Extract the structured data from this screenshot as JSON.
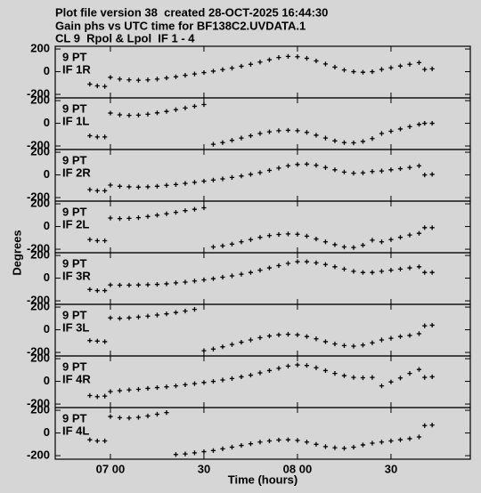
{
  "chart_data": {
    "type": "scatter",
    "title_lines": [
      "Plot file version 38  created 28-OCT-2025 16:44:30",
      "Gain phs vs UTC time for BF138C2.UVDATA.1",
      "CL 9  Rpol & Lpol  IF 1 - 4"
    ],
    "xlabel": "Time (hours)",
    "ylabel": "Degrees",
    "color": "#000000",
    "marker": "+",
    "xlim": [
      6.705,
      8.924
    ],
    "xticks": [
      {
        "value": 7.0,
        "label": "07 00"
      },
      {
        "value": 7.5,
        "label": "30"
      },
      {
        "value": 8.0,
        "label": "08 00"
      },
      {
        "value": 8.5,
        "label": "30"
      }
    ],
    "ylim": [
      -231,
      224
    ],
    "yticks": [
      -200,
      0,
      200
    ],
    "x": [
      6.89,
      6.93,
      6.97,
      7.0,
      7.05,
      7.1,
      7.15,
      7.2,
      7.25,
      7.3,
      7.35,
      7.4,
      7.45,
      7.5,
      7.55,
      7.6,
      7.65,
      7.7,
      7.75,
      7.8,
      7.85,
      7.9,
      7.95,
      8.0,
      8.05,
      8.1,
      8.15,
      8.2,
      8.25,
      8.3,
      8.35,
      8.4,
      8.45,
      8.5,
      8.55,
      8.6,
      8.65,
      8.68,
      8.72
    ],
    "series": [
      {
        "station": "9 PT",
        "name": "IF 1R",
        "values": [
          -110,
          -125,
          -130,
          -50,
          -65,
          -72,
          -75,
          -72,
          -65,
          -55,
          -45,
          -32,
          -20,
          -8,
          5,
          18,
          32,
          48,
          65,
          85,
          105,
          125,
          135,
          132,
          118,
          95,
          68,
          40,
          15,
          0,
          -5,
          0,
          20,
          35,
          50,
          65,
          80,
          20,
          25
        ]
      },
      {
        "station": "9 PT",
        "name": "IF 1L",
        "values": [
          -110,
          -120,
          -120,
          90,
          75,
          70,
          72,
          80,
          92,
          105,
          120,
          135,
          150,
          165,
          -185,
          -170,
          -150,
          -130,
          -110,
          -90,
          -75,
          -65,
          -62,
          -65,
          -80,
          -105,
          -130,
          -155,
          -170,
          -172,
          -160,
          -135,
          -90,
          -70,
          -50,
          -30,
          -10,
          0,
          0
        ]
      },
      {
        "station": "9 PT",
        "name": "IF 2R",
        "values": [
          -130,
          -140,
          -140,
          -90,
          -100,
          -105,
          -108,
          -105,
          -100,
          -92,
          -85,
          -75,
          -65,
          -55,
          -45,
          -35,
          -22,
          -10,
          5,
          20,
          40,
          60,
          80,
          92,
          95,
          85,
          65,
          45,
          25,
          15,
          18,
          30,
          35,
          45,
          55,
          65,
          80,
          0,
          5
        ]
      },
      {
        "station": "9 PT",
        "name": "IF 2L",
        "values": [
          -115,
          -125,
          -125,
          75,
          70,
          72,
          78,
          88,
          100,
          112,
          125,
          140,
          152,
          165,
          -180,
          -170,
          -155,
          -135,
          -115,
          -95,
          -80,
          -70,
          -65,
          -68,
          -85,
          -110,
          -135,
          -160,
          -180,
          -185,
          -165,
          -120,
          -135,
          -115,
          -95,
          -75,
          -60,
          -10,
          -10
        ]
      },
      {
        "station": "9 PT",
        "name": "IF 3R",
        "values": [
          -100,
          -110,
          -110,
          -60,
          -62,
          -62,
          -60,
          -58,
          -55,
          -50,
          -42,
          -35,
          -25,
          -15,
          -5,
          8,
          20,
          35,
          50,
          70,
          90,
          110,
          130,
          145,
          145,
          135,
          120,
          100,
          80,
          60,
          50,
          50,
          60,
          70,
          80,
          90,
          100,
          50,
          50
        ]
      },
      {
        "station": "9 PT",
        "name": "IF 3L",
        "values": [
          -95,
          -100,
          -105,
          105,
          100,
          105,
          112,
          120,
          130,
          140,
          152,
          165,
          180,
          -185,
          -170,
          -150,
          -130,
          -110,
          -90,
          -70,
          -55,
          -45,
          -40,
          -45,
          -60,
          -80,
          -105,
          -125,
          -140,
          -145,
          -135,
          -115,
          -90,
          -75,
          -60,
          -50,
          -35,
          35,
          40
        ]
      },
      {
        "station": "9 PT",
        "name": "IF 4R",
        "values": [
          -125,
          -135,
          -130,
          -90,
          -82,
          -75,
          -70,
          -62,
          -55,
          -48,
          -40,
          -30,
          -20,
          -10,
          0,
          12,
          25,
          40,
          55,
          75,
          95,
          115,
          135,
          145,
          140,
          120,
          95,
          70,
          50,
          35,
          32,
          35,
          -40,
          -5,
          30,
          70,
          105,
          35,
          40
        ]
      },
      {
        "station": "9 PT",
        "name": "IF 4L",
        "values": [
          -60,
          -70,
          -70,
          145,
          135,
          132,
          138,
          150,
          165,
          180,
          -190,
          -185,
          -175,
          -165,
          -155,
          -140,
          -125,
          -110,
          -95,
          -80,
          -70,
          -62,
          -60,
          -65,
          -80,
          -100,
          -120,
          -130,
          -135,
          -125,
          -105,
          -90,
          -80,
          -70,
          -60,
          -50,
          -35,
          65,
          70
        ]
      }
    ]
  }
}
